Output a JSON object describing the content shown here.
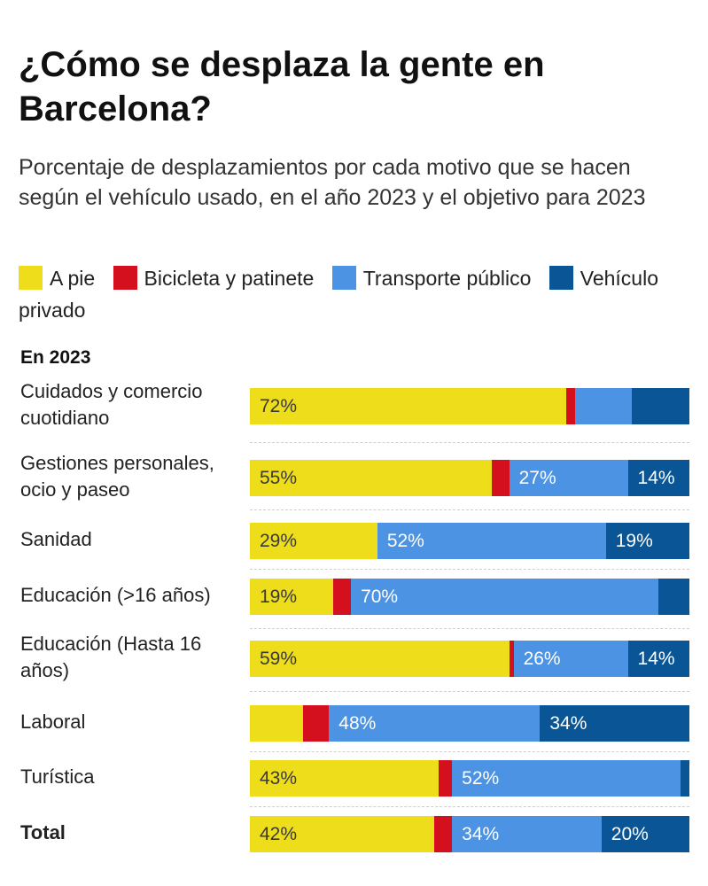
{
  "title": "¿Cómo se desplaza la gente en Barcelona?",
  "subtitle": "Porcentaje de desplazamientos por cada motivo que se hacen según el vehículo usado, en el año 2023 y el objetivo para 2023",
  "section_label": "En 2023",
  "chart_data": {
    "type": "bar",
    "orientation": "horizontal",
    "stacked": true,
    "unit": "%",
    "series": [
      {
        "name": "A pie",
        "color": "#eedd1a",
        "text_color": "#3a3a3a"
      },
      {
        "name": "Bicicleta y patinete",
        "color": "#d4101f",
        "text_color": "#ffffff"
      },
      {
        "name": "Transporte público",
        "color": "#4c93e3",
        "text_color": "#ffffff"
      },
      {
        "name": "Vehículo privado",
        "color": "#0a5596",
        "text_color": "#ffffff"
      }
    ],
    "rows": [
      {
        "category": "Cuidados y comercio cuotidiano",
        "bold": false,
        "values": [
          72,
          2,
          13,
          13
        ],
        "labels": [
          "72%",
          "",
          "",
          ""
        ]
      },
      {
        "category": "Gestiones personales, ocio y paseo",
        "bold": false,
        "values": [
          55,
          4,
          27,
          14
        ],
        "labels": [
          "55%",
          "",
          "27%",
          "14%"
        ]
      },
      {
        "category": "Sanidad",
        "bold": false,
        "values": [
          29,
          0,
          52,
          19
        ],
        "labels": [
          "29%",
          "",
          "52%",
          "19%"
        ]
      },
      {
        "category": "Educación (>16 años)",
        "bold": false,
        "values": [
          19,
          4,
          70,
          7
        ],
        "labels": [
          "19%",
          "",
          "70%",
          ""
        ]
      },
      {
        "category": "Educación (Hasta 16 años)",
        "bold": false,
        "values": [
          59,
          1,
          26,
          14
        ],
        "labels": [
          "59%",
          "",
          "26%",
          "14%"
        ]
      },
      {
        "category": "Laboral",
        "bold": false,
        "values": [
          12,
          6,
          48,
          34
        ],
        "labels": [
          "",
          "",
          "48%",
          "34%"
        ]
      },
      {
        "category": "Turística",
        "bold": false,
        "values": [
          43,
          3,
          52,
          2
        ],
        "labels": [
          "43%",
          "",
          "52%",
          ""
        ]
      },
      {
        "category": "Total",
        "bold": true,
        "values": [
          42,
          4,
          34,
          20
        ],
        "labels": [
          "42%",
          "",
          "34%",
          "20%"
        ]
      }
    ]
  }
}
